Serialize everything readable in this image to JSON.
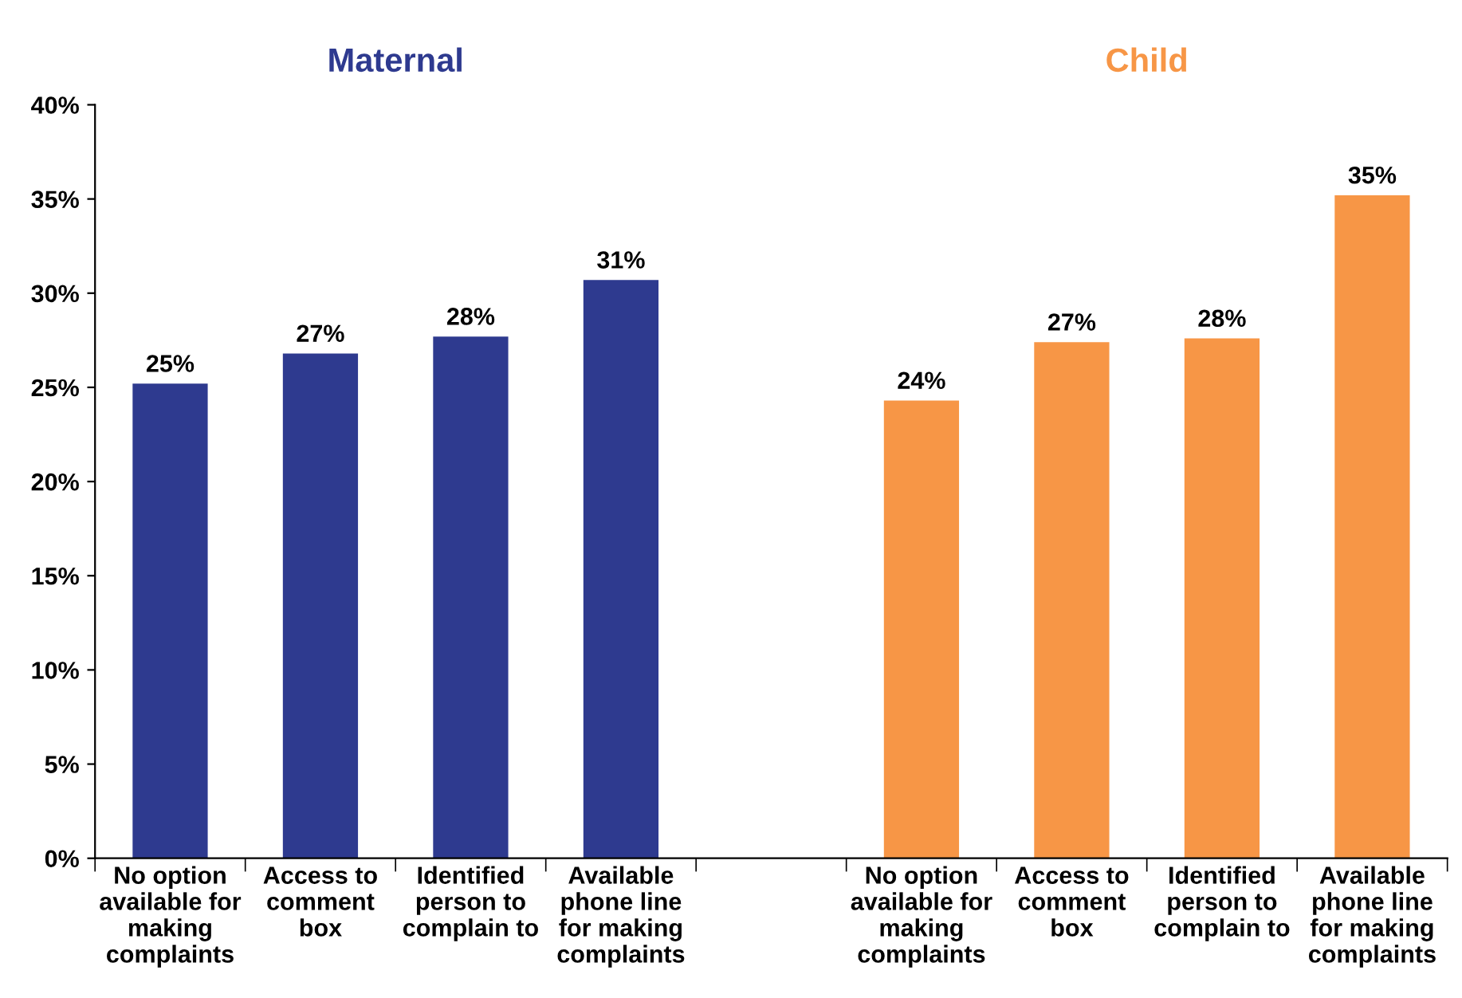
{
  "chart_data": {
    "type": "bar",
    "categories": [
      "No option\navailable for\nmaking\ncomplaints",
      "Access to\ncomment\nbox",
      "Identified\nperson to\ncomplain to",
      "Available\nphone line\nfor making\ncomplaints",
      null,
      "No option\navailable for\nmaking\ncomplaints",
      "Access to\ncomment\nbox",
      "Identified\nperson to\ncomplain to",
      "Available\nphone line\nfor making\ncomplaints"
    ],
    "series": [
      {
        "name": "Maternal",
        "color": "#2e3a8f",
        "values": [
          25.2,
          26.8,
          27.7,
          30.7,
          null,
          null,
          null,
          null,
          null
        ],
        "value_labels": [
          "25%",
          "27%",
          "28%",
          "31%",
          null,
          null,
          null,
          null,
          null
        ]
      },
      {
        "name": "Child",
        "color": "#f79646",
        "values": [
          null,
          null,
          null,
          null,
          null,
          24.3,
          27.4,
          27.6,
          35.2
        ],
        "value_labels": [
          null,
          null,
          null,
          null,
          null,
          "24%",
          "27%",
          "28%",
          "35%"
        ]
      }
    ],
    "ylim": [
      0,
      40
    ],
    "yticks": [
      {
        "value": 0,
        "label": "0%"
      },
      {
        "value": 5,
        "label": "5%"
      },
      {
        "value": 10,
        "label": "10%"
      },
      {
        "value": 15,
        "label": "15%"
      },
      {
        "value": 20,
        "label": "20%"
      },
      {
        "value": 25,
        "label": "25%"
      },
      {
        "value": 30,
        "label": "30%"
      },
      {
        "value": 35,
        "label": "35%"
      },
      {
        "value": 40,
        "label": "40%"
      }
    ],
    "grid": false,
    "legend": false
  }
}
